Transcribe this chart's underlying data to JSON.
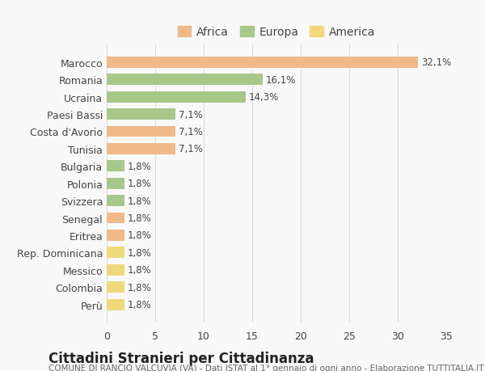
{
  "title": "Cittadini Stranieri per Cittadinanza",
  "subtitle": "COMUNE DI RANCIO VALCUVIA (VA) - Dati ISTAT al 1° gennaio di ogni anno - Elaborazione TUTTITALIA.IT",
  "categories": [
    "Marocco",
    "Romania",
    "Ucraina",
    "Paesi Bassi",
    "Costa d'Avorio",
    "Tunisia",
    "Bulgaria",
    "Polonia",
    "Svizzera",
    "Senegal",
    "Eritrea",
    "Rep. Dominicana",
    "Messico",
    "Colombia",
    "Perù"
  ],
  "values": [
    32.1,
    16.1,
    14.3,
    7.1,
    7.1,
    7.1,
    1.8,
    1.8,
    1.8,
    1.8,
    1.8,
    1.8,
    1.8,
    1.8,
    1.8
  ],
  "colors": [
    "#f0b98a",
    "#a8c88a",
    "#a8c88a",
    "#a8c88a",
    "#f0b98a",
    "#f0b98a",
    "#a8c88a",
    "#a8c88a",
    "#a8c88a",
    "#f0b98a",
    "#f0b98a",
    "#f0d97a",
    "#f0d97a",
    "#f0d97a",
    "#f0d97a"
  ],
  "labels": [
    "32,1%",
    "16,1%",
    "14,3%",
    "7,1%",
    "7,1%",
    "7,1%",
    "1,8%",
    "1,8%",
    "1,8%",
    "1,8%",
    "1,8%",
    "1,8%",
    "1,8%",
    "1,8%",
    "1,8%"
  ],
  "legend": [
    {
      "label": "Africa",
      "color": "#f0b98a"
    },
    {
      "label": "Europa",
      "color": "#a8c88a"
    },
    {
      "label": "America",
      "color": "#f0d97a"
    }
  ],
  "xlim": [
    0,
    35
  ],
  "xticks": [
    0,
    5,
    10,
    15,
    20,
    25,
    30,
    35
  ],
  "background_color": "#f9f9f9",
  "grid_color": "#dddddd",
  "text_color": "#444444",
  "title_fontsize": 12,
  "subtitle_fontsize": 7.5,
  "label_fontsize": 8.5,
  "tick_fontsize": 9,
  "bar_height": 0.65
}
